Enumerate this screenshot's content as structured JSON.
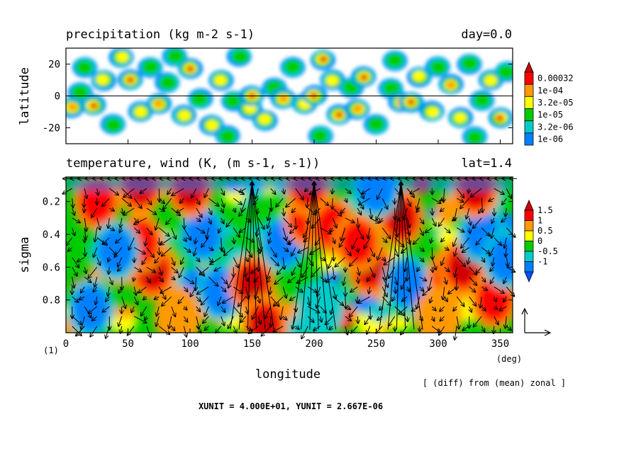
{
  "figure": {
    "run_label": "(1)",
    "unit_footer": "XUNIT = 4.000E+01, YUNIT = 2.667E-06",
    "diff_note": "[ (diff) from (mean) zonal ]",
    "vector_unit_note": "reference arrows"
  },
  "chart_data": [
    {
      "type": "heatmap",
      "title": "precipitation (kg m-2 s-1)",
      "time_label": "day=0.0",
      "ylabel": "latitude",
      "xlabel": "",
      "xlim": [
        0,
        360
      ],
      "ylim": [
        -30,
        30
      ],
      "yticks": [
        20,
        0,
        -20
      ],
      "ytick_labels": [
        "20",
        "0",
        "-20"
      ],
      "reference_line": 0,
      "colorbar": {
        "labels": [
          "0.00032",
          "1e-04",
          "3.2e-05",
          "1e-05",
          "3.2e-06",
          "1e-06"
        ],
        "levels": [
          0.00032,
          0.0001,
          3.2e-05,
          1e-05,
          3.2e-06,
          1e-06
        ],
        "colors": [
          "#ff0000",
          "#ff9900",
          "#ffff00",
          "#00cc00",
          "#00cccc",
          "#0080ff"
        ],
        "top_color": "#cc0000"
      },
      "blobs": [
        {
          "lon": 5,
          "lat": -7,
          "level": 4
        },
        {
          "lon": 15,
          "lat": 18,
          "level": 2
        },
        {
          "lon": 22,
          "lat": -6,
          "level": 5
        },
        {
          "lon": 30,
          "lat": 10,
          "level": 3
        },
        {
          "lon": 38,
          "lat": -18,
          "level": 2
        },
        {
          "lon": 45,
          "lat": 24,
          "level": 3
        },
        {
          "lon": 52,
          "lat": 10,
          "level": 5
        },
        {
          "lon": 60,
          "lat": -10,
          "level": 3
        },
        {
          "lon": 68,
          "lat": 18,
          "level": 2
        },
        {
          "lon": 75,
          "lat": -5,
          "level": 4
        },
        {
          "lon": 82,
          "lat": 8,
          "level": 2
        },
        {
          "lon": 95,
          "lat": -12,
          "level": 3
        },
        {
          "lon": 100,
          "lat": 17,
          "level": 5
        },
        {
          "lon": 108,
          "lat": -2,
          "level": 2
        },
        {
          "lon": 118,
          "lat": -18,
          "level": 3
        },
        {
          "lon": 125,
          "lat": 10,
          "level": 3
        },
        {
          "lon": 135,
          "lat": -3,
          "level": 2
        },
        {
          "lon": 140,
          "lat": 25,
          "level": 2
        },
        {
          "lon": 148,
          "lat": -8,
          "level": 3
        },
        {
          "lon": 150,
          "lat": 0,
          "level": 5
        },
        {
          "lon": 160,
          "lat": -15,
          "level": 3
        },
        {
          "lon": 168,
          "lat": 5,
          "level": 2
        },
        {
          "lon": 175,
          "lat": -2,
          "level": 4
        },
        {
          "lon": 183,
          "lat": 18,
          "level": 2
        },
        {
          "lon": 192,
          "lat": -5,
          "level": 3
        },
        {
          "lon": 200,
          "lat": 0,
          "level": 5
        },
        {
          "lon": 207,
          "lat": 23,
          "level": 5
        },
        {
          "lon": 215,
          "lat": 10,
          "level": 3
        },
        {
          "lon": 220,
          "lat": -12,
          "level": 5
        },
        {
          "lon": 230,
          "lat": 5,
          "level": 2
        },
        {
          "lon": 235,
          "lat": -8,
          "level": 4
        },
        {
          "lon": 240,
          "lat": 12,
          "level": 5
        },
        {
          "lon": 250,
          "lat": -18,
          "level": 2
        },
        {
          "lon": 262,
          "lat": 5,
          "level": 2
        },
        {
          "lon": 270,
          "lat": -4,
          "level": 4
        },
        {
          "lon": 278,
          "lat": -4,
          "level": 5
        },
        {
          "lon": 285,
          "lat": 12,
          "level": 3
        },
        {
          "lon": 295,
          "lat": -10,
          "level": 3
        },
        {
          "lon": 300,
          "lat": 18,
          "level": 2
        },
        {
          "lon": 310,
          "lat": 7,
          "level": 4
        },
        {
          "lon": 318,
          "lat": -14,
          "level": 3
        },
        {
          "lon": 325,
          "lat": 20,
          "level": 2
        },
        {
          "lon": 335,
          "lat": -3,
          "level": 2
        },
        {
          "lon": 342,
          "lat": 10,
          "level": 3
        },
        {
          "lon": 350,
          "lat": -14,
          "level": 5
        },
        {
          "lon": 355,
          "lat": 15,
          "level": 2
        },
        {
          "lon": 12,
          "lat": 2,
          "level": 2
        },
        {
          "lon": 88,
          "lat": 25,
          "level": 2
        },
        {
          "lon": 130,
          "lat": -25,
          "level": 2
        },
        {
          "lon": 205,
          "lat": -25,
          "level": 2
        },
        {
          "lon": 265,
          "lat": 22,
          "level": 2
        },
        {
          "lon": 330,
          "lat": -26,
          "level": 2
        }
      ]
    },
    {
      "type": "heatmap",
      "title": "temperature, wind (K, (m s-1, s-1))",
      "time_label": "lat=1.4",
      "ylabel": "sigma",
      "xlabel": "longitude",
      "x_unit": "(deg)",
      "xlim": [
        0,
        360
      ],
      "ylim": [
        1.0,
        0.05
      ],
      "xticks": [
        0,
        50,
        100,
        150,
        200,
        250,
        300,
        350
      ],
      "xtick_labels": [
        "0",
        "50",
        "100",
        "150",
        "200",
        "250",
        "300",
        "350"
      ],
      "yticks": [
        0.2,
        0.4,
        0.6,
        0.8
      ],
      "ytick_labels": [
        "0.2",
        "0.4",
        "0.6",
        "0.8"
      ],
      "colorbar": {
        "labels": [
          "1.5",
          "1",
          "0.5",
          "0",
          "-0.5",
          "-1"
        ],
        "levels": [
          1.5,
          1.0,
          0.5,
          0.0,
          -0.5,
          -1.0
        ],
        "colors": [
          "#ff0000",
          "#ff9900",
          "#ffff00",
          "#00cc00",
          "#00cccc",
          "#0080ff"
        ],
        "top_color": "#cc0000",
        "bottom_color": "#0050ff"
      },
      "anomalies": [
        {
          "lon": 70,
          "sigma": 0.62,
          "value": 2.0
        },
        {
          "lon": 60,
          "sigma": 0.45,
          "value": 1.0
        },
        {
          "lon": 25,
          "sigma": 0.2,
          "value": 1.0
        },
        {
          "lon": 40,
          "sigma": 0.5,
          "value": -1.5
        },
        {
          "lon": 110,
          "sigma": 0.4,
          "value": -1.5
        },
        {
          "lon": 125,
          "sigma": 0.75,
          "value": -1.2
        },
        {
          "lon": 150,
          "sigma": 0.7,
          "value": 2.0
        },
        {
          "lon": 175,
          "sigma": 0.45,
          "value": -1.5
        },
        {
          "lon": 195,
          "sigma": 0.3,
          "value": 1.2
        },
        {
          "lon": 215,
          "sigma": 0.35,
          "value": 1.0
        },
        {
          "lon": 245,
          "sigma": 0.6,
          "value": 2.0
        },
        {
          "lon": 235,
          "sigma": 0.45,
          "value": 1.0
        },
        {
          "lon": 275,
          "sigma": 0.7,
          "value": -1.5
        },
        {
          "lon": 270,
          "sigma": 0.3,
          "value": 2.0
        },
        {
          "lon": 310,
          "sigma": 0.65,
          "value": 1.0
        },
        {
          "lon": 320,
          "sigma": 0.6,
          "value": 1.8
        },
        {
          "lon": 335,
          "sigma": 0.4,
          "value": -1.5
        },
        {
          "lon": 345,
          "sigma": 0.8,
          "value": 1.0
        },
        {
          "lon": 20,
          "sigma": 0.85,
          "value": -1.0
        },
        {
          "lon": 90,
          "sigma": 0.9,
          "value": 0.6
        },
        {
          "lon": 160,
          "sigma": 0.95,
          "value": 1.8
        },
        {
          "lon": 205,
          "sigma": 0.85,
          "value": -0.8
        },
        {
          "lon": 300,
          "sigma": 0.9,
          "value": 0.8
        },
        {
          "lon": 355,
          "sigma": 0.55,
          "value": -1.0
        },
        {
          "lon": 100,
          "sigma": 0.12,
          "value": 2.0
        },
        {
          "lon": 60,
          "sigma": 0.1,
          "value": 1.8
        },
        {
          "lon": 195,
          "sigma": 0.1,
          "value": 2.0
        },
        {
          "lon": 330,
          "sigma": 0.12,
          "value": 1.5
        },
        {
          "lon": 250,
          "sigma": 0.12,
          "value": -1.0
        }
      ]
    }
  ]
}
